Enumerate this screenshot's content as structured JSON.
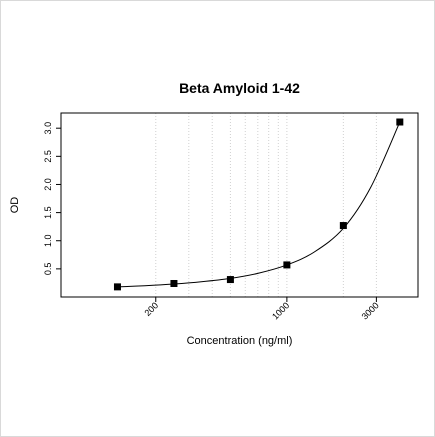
{
  "chart_data": {
    "type": "scatter",
    "title": "Beta Amyloid 1-42",
    "xlabel": "Concentration (ng/ml)",
    "ylabel": "OD",
    "x_scale": "log",
    "xlim": [
      62.5,
      5000
    ],
    "ylim": [
      0.0,
      3.27
    ],
    "x_ticks": [
      200,
      1000,
      3000
    ],
    "x_tick_labels": [
      "200",
      "1000",
      "3000"
    ],
    "y_ticks": [
      0.5,
      1.0,
      1.5,
      2.0,
      2.5,
      3.0
    ],
    "y_tick_labels": [
      "0.5",
      "1.0",
      "1.5",
      "2.0",
      "2.5",
      "3.0"
    ],
    "x_gridlines": [
      200,
      300,
      400,
      500,
      600,
      700,
      800,
      900,
      1000,
      2000,
      3000
    ],
    "grid": "vertical dotted",
    "legend": "none",
    "series": [
      {
        "marker": "filled-square",
        "x": [
          125,
          250,
          500,
          1000,
          2000,
          4000
        ],
        "y": [
          0.18,
          0.24,
          0.31,
          0.57,
          1.27,
          3.11
        ]
      }
    ],
    "fit_curve": {
      "x": [
        125,
        175,
        250,
        350,
        500,
        700,
        1000,
        1400,
        2000,
        2800,
        4000
      ],
      "y": [
        0.18,
        0.2,
        0.23,
        0.27,
        0.33,
        0.42,
        0.57,
        0.8,
        1.22,
        1.95,
        3.11
      ]
    }
  }
}
